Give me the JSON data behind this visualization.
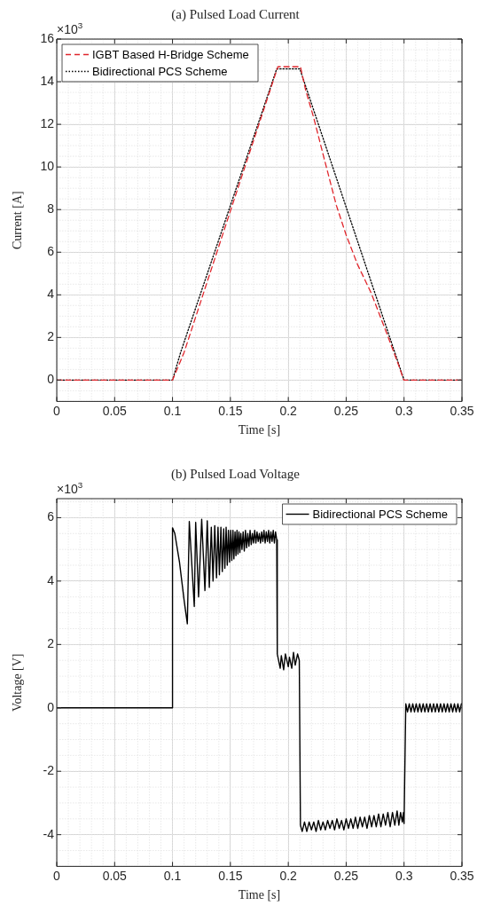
{
  "chart_data": [
    {
      "type": "line",
      "title": "(a) Pulsed Load Current",
      "xlabel": "Time [s]",
      "ylabel": "Current [A]",
      "annotations": [
        "×10$^{3}$"
      ],
      "xlim": [
        0,
        0.35
      ],
      "xticks": [
        0,
        0.05,
        0.1,
        0.15,
        0.2,
        0.25,
        0.3,
        0.35
      ],
      "ylim": [
        -1,
        16
      ],
      "yticks": [
        0,
        2,
        4,
        6,
        8,
        10,
        12,
        14,
        16
      ],
      "grid": true,
      "legend": "top left",
      "marker": "none",
      "series": [
        {
          "name": "IGBT Based H-Bridge Scheme",
          "color": "#e0262c",
          "line_style": "dashed",
          "x": [
            0,
            0.1,
            0.11,
            0.151,
            0.191,
            0.2105,
            0.215,
            0.222,
            0.23,
            0.2415,
            0.25,
            0.26,
            0.2715,
            0.285,
            0.296,
            0.2997,
            0.35
          ],
          "values": [
            0,
            0,
            1.3,
            8.1,
            14.7,
            14.7,
            13.6,
            12.3,
            10.6,
            8.2,
            6.8,
            5.4,
            4.1,
            2.2,
            0.6,
            0,
            0
          ]
        },
        {
          "name": "Bidirectional PCS Scheme",
          "color": "#000000",
          "line_style": "dotted",
          "x": [
            0,
            0.1,
            0.107,
            0.19,
            0.21,
            0.3,
            0.35
          ],
          "values": [
            0,
            0,
            1.3,
            14.6,
            14.6,
            0,
            0
          ]
        }
      ]
    },
    {
      "type": "line",
      "title": "(b) Pulsed Load Voltage",
      "xlabel": "Time [s]",
      "ylabel": "Voltage [V]",
      "annotations": [
        "×10$^{3}$"
      ],
      "xlim": [
        0,
        0.35
      ],
      "xticks": [
        0,
        0.05,
        0.1,
        0.15,
        0.2,
        0.25,
        0.3,
        0.35
      ],
      "ylim": [
        -5,
        6.6
      ],
      "yticks": [
        -4,
        -2,
        0,
        2,
        4,
        6
      ],
      "grid": true,
      "legend": "top right",
      "marker": "none",
      "series": [
        {
          "name": "Bidirectional PCS Scheme",
          "color": "#000000",
          "line_style": "solid",
          "x": [
            0,
            0.0999,
            0.1,
            0.102,
            0.106,
            0.11,
            0.1128,
            0.1145,
            0.1188,
            0.12,
            0.1225,
            0.1252,
            0.128,
            0.13,
            0.1318,
            0.1335,
            0.135,
            0.1365,
            0.138,
            0.1393,
            0.1405,
            0.1418,
            0.143,
            0.1442,
            0.1452,
            0.1463,
            0.1473,
            0.1483,
            0.1493,
            0.1503,
            0.1512,
            0.1522,
            0.153,
            0.154,
            0.1548,
            0.1557,
            0.1565,
            0.1574,
            0.1582,
            0.159,
            0.16,
            0.161,
            0.162,
            0.163,
            0.164,
            0.165,
            0.166,
            0.167,
            0.168,
            0.169,
            0.17,
            0.171,
            0.172,
            0.173,
            0.174,
            0.175,
            0.176,
            0.177,
            0.178,
            0.179,
            0.18,
            0.181,
            0.182,
            0.183,
            0.184,
            0.185,
            0.186,
            0.187,
            0.188,
            0.189,
            0.19,
            0.1905,
            0.193,
            0.194,
            0.196,
            0.1975,
            0.2,
            0.201,
            0.203,
            0.2045,
            0.206,
            0.208,
            0.2095,
            0.2105,
            0.212,
            0.214,
            0.216,
            0.218,
            0.22,
            0.222,
            0.224,
            0.226,
            0.228,
            0.23,
            0.232,
            0.234,
            0.236,
            0.238,
            0.24,
            0.242,
            0.244,
            0.246,
            0.248,
            0.25,
            0.252,
            0.254,
            0.256,
            0.258,
            0.26,
            0.262,
            0.264,
            0.266,
            0.268,
            0.27,
            0.272,
            0.274,
            0.276,
            0.278,
            0.28,
            0.282,
            0.284,
            0.286,
            0.288,
            0.29,
            0.292,
            0.294,
            0.2955,
            0.297,
            0.2985,
            0.2995,
            0.3,
            0.3015,
            0.303,
            0.3045,
            0.306,
            0.3075,
            0.309,
            0.3105,
            0.312,
            0.3135,
            0.315,
            0.3165,
            0.318,
            0.3195,
            0.321,
            0.3225,
            0.324,
            0.3255,
            0.327,
            0.3285,
            0.33,
            0.3315,
            0.333,
            0.3345,
            0.336,
            0.3375,
            0.339,
            0.3405,
            0.342,
            0.3435,
            0.345,
            0.3465,
            0.348,
            0.3495,
            0.35
          ],
          "values": [
            0,
            0,
            5.68,
            5.5,
            4.6,
            3.4,
            2.65,
            5.88,
            3.2,
            5.85,
            3.5,
            5.95,
            3.7,
            5.9,
            3.8,
            5.7,
            4,
            5.75,
            4.1,
            5.7,
            4.2,
            5.7,
            4.3,
            5.65,
            4.4,
            5.7,
            4.5,
            5.6,
            4.6,
            5.6,
            4.65,
            5.6,
            4.7,
            5.55,
            4.8,
            5.6,
            4.85,
            5.55,
            4.9,
            5.5,
            5,
            5.55,
            4.95,
            5.6,
            5.05,
            5.5,
            5.1,
            5.6,
            5.15,
            5.5,
            5.2,
            5.6,
            5.2,
            5.55,
            5.25,
            5.5,
            5.2,
            5.55,
            5.25,
            5.6,
            5.2,
            5.55,
            5.25,
            5.6,
            5.2,
            5.55,
            5.25,
            5.6,
            5.2,
            5.55,
            5.3,
            1.7,
            1.25,
            1.65,
            1.2,
            1.7,
            1.3,
            1.6,
            1.25,
            1.75,
            1.35,
            1.7,
            1.5,
            -3.7,
            -3.9,
            -3.6,
            -3.9,
            -3.6,
            -3.85,
            -3.6,
            -3.9,
            -3.55,
            -3.85,
            -3.6,
            -3.85,
            -3.55,
            -3.8,
            -3.55,
            -3.85,
            -3.5,
            -3.8,
            -3.55,
            -3.85,
            -3.5,
            -3.8,
            -3.5,
            -3.8,
            -3.45,
            -3.8,
            -3.45,
            -3.75,
            -3.45,
            -3.8,
            -3.4,
            -3.75,
            -3.4,
            -3.75,
            -3.35,
            -3.75,
            -3.35,
            -3.7,
            -3.3,
            -3.75,
            -3.3,
            -3.7,
            -3.25,
            -3.7,
            -3.3,
            -3.6,
            -3.3,
            -3.65,
            0.13,
            -0.13,
            0.13,
            -0.13,
            0.13,
            -0.13,
            0.13,
            -0.13,
            0.13,
            -0.13,
            0.13,
            -0.13,
            0.13,
            -0.13,
            0.13,
            -0.13,
            0.13,
            -0.13,
            0.13,
            -0.13,
            0.13,
            -0.13,
            0.13,
            -0.13,
            0.13,
            -0.13,
            0.13,
            -0.13,
            0.13,
            -0.13,
            0.13,
            -0.13,
            0.13,
            0.13
          ]
        }
      ]
    }
  ]
}
